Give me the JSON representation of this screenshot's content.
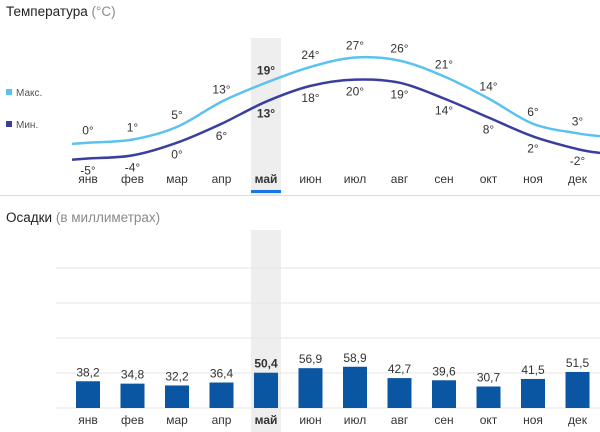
{
  "temperature": {
    "title": "Температура",
    "unit": "(°C)",
    "legend_max": "Макс.",
    "legend_min": "Мин.",
    "colors": {
      "max": "#5bc2f0",
      "min": "#3a3f9e"
    }
  },
  "precipitation": {
    "title": "Осадки",
    "unit": "(в миллиметрах)",
    "colors": {
      "bar": "#0a56a3"
    }
  },
  "months": [
    "янв",
    "фев",
    "мар",
    "апр",
    "май",
    "июн",
    "июл",
    "авг",
    "сен",
    "окт",
    "ноя",
    "дек"
  ],
  "selected_month_index": 4,
  "chart_data": [
    {
      "type": "line",
      "title": "Температура (°C)",
      "categories": [
        "янв",
        "фев",
        "мар",
        "апр",
        "май",
        "июн",
        "июл",
        "авг",
        "сен",
        "окт",
        "ноя",
        "дек"
      ],
      "series": [
        {
          "name": "Макс.",
          "values": [
            0,
            1,
            5,
            13,
            19,
            24,
            27,
            26,
            21,
            14,
            6,
            3
          ],
          "labels": [
            "0°",
            "1°",
            "5°",
            "13°",
            "19°",
            "24°",
            "27°",
            "26°",
            "21°",
            "14°",
            "6°",
            "3°"
          ]
        },
        {
          "name": "Мин.",
          "values": [
            -5,
            -4,
            0,
            6,
            13,
            18,
            20,
            19,
            14,
            8,
            2,
            -2
          ],
          "labels": [
            "-5°",
            "-4°",
            "0°",
            "6°",
            "13°",
            "18°",
            "20°",
            "19°",
            "14°",
            "8°",
            "2°",
            "-2°"
          ]
        }
      ],
      "ylim": [
        -8,
        30
      ],
      "legend": "left"
    },
    {
      "type": "bar",
      "title": "Осадки (в миллиметрах)",
      "categories": [
        "янв",
        "фев",
        "мар",
        "апр",
        "май",
        "июн",
        "июл",
        "авг",
        "сен",
        "окт",
        "ноя",
        "дек"
      ],
      "values": [
        38.2,
        34.8,
        32.2,
        36.4,
        50.4,
        56.9,
        58.9,
        42.7,
        39.6,
        30.7,
        41.5,
        51.5
      ],
      "labels": [
        "38,2",
        "34,8",
        "32,2",
        "36,4",
        "50,4",
        "56,9",
        "58,9",
        "42,7",
        "39,6",
        "30,7",
        "41,5",
        "51,5"
      ],
      "ylim": [
        0,
        200
      ],
      "grid": true
    }
  ]
}
